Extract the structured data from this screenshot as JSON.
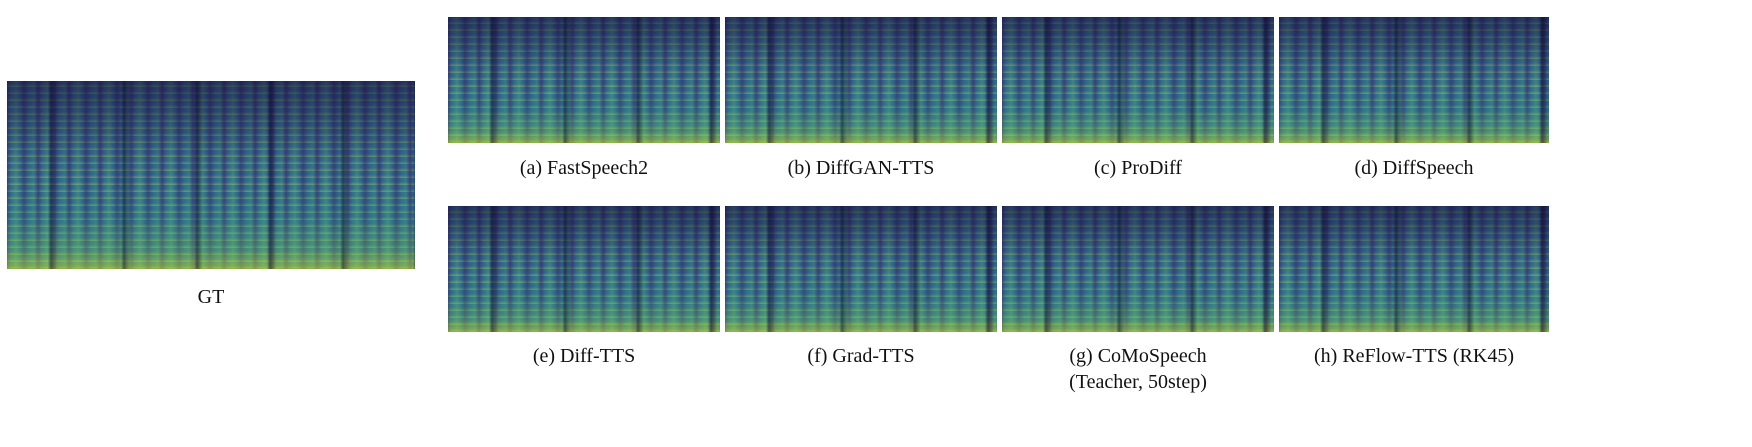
{
  "panels": [
    {
      "id": "gt",
      "caption": "GT"
    },
    {
      "id": "a",
      "caption": "(a) FastSpeech2"
    },
    {
      "id": "b",
      "caption": "(b) DiffGAN-TTS"
    },
    {
      "id": "c",
      "caption": "(c) ProDiff"
    },
    {
      "id": "d",
      "caption": "(d) DiffSpeech"
    },
    {
      "id": "e",
      "caption": "(e) Diff-TTS"
    },
    {
      "id": "f",
      "caption": "(f) Grad-TTS"
    },
    {
      "id": "g",
      "caption": "(g) CoMoSpeech",
      "caption_line2": "(Teacher, 50step)"
    },
    {
      "id": "h",
      "caption": "(h) ReFlow-TTS (RK45)"
    }
  ],
  "colormap": {
    "low": "#3b1f6e",
    "mid": "#2e8c8a",
    "high": "#e3e52a"
  }
}
